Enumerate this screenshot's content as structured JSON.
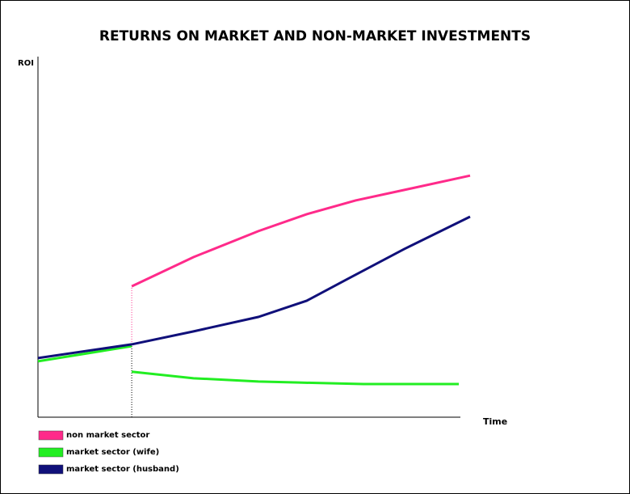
{
  "chart_data": {
    "type": "line",
    "title": "RETURNS ON MARKET AND NON-MARKET INVESTMENTS",
    "y_label": "ROI",
    "x_label": "Time",
    "xlim": [
      0,
      100
    ],
    "ylim": [
      0,
      100
    ],
    "legend": "bottom-left",
    "series": [
      {
        "name": "non market sector",
        "color": "#ff2a8a",
        "x": [
          21.7,
          36,
          51,
          62.2,
          73.5,
          84.7,
          100
        ],
        "values": [
          36.3,
          44.4,
          51.6,
          56.3,
          60.1,
          63,
          67
        ]
      },
      {
        "name": "market sector (wife)",
        "color": "#22ee22",
        "x": [
          0,
          21.7,
          21.7,
          21.7,
          36,
          51,
          60.4,
          75.3,
          97.4
        ],
        "values": [
          15.5,
          19.7,
          null,
          12.6,
          10.8,
          9.9,
          9.6,
          9.2,
          9.2
        ]
      },
      {
        "name": "market sector (husband)",
        "color": "#10107a",
        "x": [
          0,
          21.7,
          36,
          51,
          62.2,
          71.6,
          84.7,
          100
        ],
        "values": [
          16.4,
          20.2,
          23.8,
          27.8,
          32.3,
          38.3,
          46.6,
          55.6
        ]
      }
    ]
  }
}
